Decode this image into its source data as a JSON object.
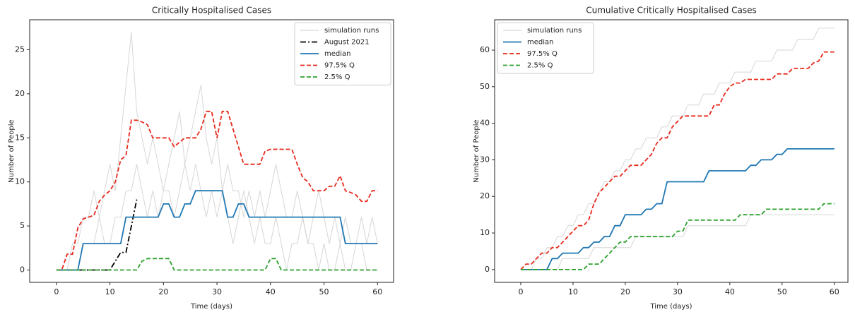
{
  "chart_data": [
    {
      "type": "line",
      "title": "Critically Hospitalised Cases",
      "xlabel": "Time (days)",
      "ylabel": "Number of People",
      "legend": "upper right",
      "x": [
        0,
        1,
        2,
        3,
        4,
        5,
        6,
        7,
        8,
        9,
        10,
        11,
        12,
        13,
        14,
        15,
        16,
        17,
        18,
        19,
        20,
        21,
        22,
        23,
        24,
        25,
        26,
        27,
        28,
        29,
        30,
        31,
        32,
        33,
        34,
        35,
        36,
        37,
        38,
        39,
        40,
        41,
        42,
        43,
        44,
        45,
        46,
        47,
        48,
        49,
        50,
        51,
        52,
        53,
        54,
        55,
        56,
        57,
        58,
        59,
        60
      ],
      "xlim": [
        -5,
        63
      ],
      "xticks": [
        0,
        10,
        20,
        30,
        40,
        50,
        60
      ],
      "ylim": [
        -1.4,
        28.4
      ],
      "yticks": [
        0,
        5,
        10,
        15,
        20,
        25
      ],
      "series": [
        {
          "name": "simulation runs",
          "color": "#cccccc",
          "linestyle": "solid",
          "values": [
            0,
            0,
            0,
            3,
            3,
            6,
            6,
            9,
            6,
            9,
            12,
            9,
            15,
            21,
            27,
            18,
            15,
            12,
            15,
            12,
            9,
            12,
            15,
            18,
            12,
            15,
            18,
            21,
            15,
            12,
            15,
            9,
            12,
            9,
            9,
            6,
            9,
            6,
            9,
            6,
            9,
            12,
            9,
            6,
            6,
            9,
            6,
            3,
            6,
            9,
            6,
            3,
            6,
            3,
            6,
            3,
            3,
            6,
            3,
            6,
            3
          ]
        },
        {
          "name": "simulation runs",
          "color": "#cccccc",
          "linestyle": "solid",
          "values": [
            0,
            0,
            0,
            0,
            0,
            3,
            3,
            3,
            6,
            3,
            3,
            6,
            6,
            9,
            9,
            12,
            9,
            6,
            9,
            6,
            9,
            9,
            6,
            9,
            12,
            9,
            12,
            9,
            6,
            9,
            6,
            9,
            6,
            3,
            6,
            9,
            6,
            3,
            6,
            3,
            3,
            6,
            3,
            0,
            3,
            3,
            6,
            3,
            3,
            0,
            3,
            0,
            0,
            3,
            0,
            0,
            3,
            3,
            0,
            0,
            0
          ]
        },
        {
          "name": "August 2021",
          "color": "#000000",
          "linestyle": "dashdot",
          "values": [
            0,
            0,
            0,
            0,
            0,
            0,
            0,
            0,
            0,
            0,
            0,
            1,
            2,
            2,
            5,
            8,
            null,
            null,
            null,
            null,
            null,
            null,
            null,
            null,
            null,
            null,
            null,
            null,
            null,
            null,
            null,
            null,
            null,
            null,
            null,
            null,
            null,
            null,
            null,
            null,
            null,
            null,
            null,
            null,
            null,
            null,
            null,
            null,
            null,
            null,
            null,
            null,
            null,
            null,
            null,
            null,
            null,
            null,
            null,
            null,
            null
          ]
        },
        {
          "name": "median",
          "color": "#1f77b4",
          "linestyle": "solid",
          "values": [
            0,
            0,
            0,
            0,
            0,
            3,
            3,
            3,
            3,
            3,
            3,
            3,
            3,
            6,
            6,
            6,
            6,
            6,
            6,
            6,
            7.5,
            7.5,
            6,
            6,
            7.5,
            7.5,
            9,
            9,
            9,
            9,
            9,
            9,
            6,
            6,
            7.5,
            7.5,
            6,
            6,
            6,
            6,
            6,
            6,
            6,
            6,
            6,
            6,
            6,
            6,
            6,
            6,
            6,
            6,
            6,
            6,
            3,
            3,
            3,
            3,
            3,
            3,
            3
          ]
        },
        {
          "name": "97.5% Q",
          "color": "#e8291c",
          "linestyle": "dashed",
          "values": [
            0,
            0,
            1.8,
            1.8,
            4.8,
            5.8,
            6,
            6.2,
            7.8,
            8.5,
            9,
            10,
            12.5,
            13,
            17,
            17,
            16.8,
            16.5,
            15,
            15,
            15,
            15,
            14,
            14.5,
            15,
            15,
            15,
            16,
            18,
            18,
            15,
            18,
            18,
            16,
            14,
            12,
            12,
            12,
            12,
            13.5,
            13.7,
            13.7,
            13.7,
            13.7,
            13.7,
            12,
            10.5,
            10,
            9,
            9,
            9,
            9.5,
            9.5,
            10.7,
            9,
            8.8,
            8.5,
            7.8,
            7.8,
            9,
            9
          ]
        },
        {
          "name": "2.5% Q",
          "color": "#2ca02c",
          "linestyle": "dashed",
          "values": [
            0,
            0,
            0,
            0,
            0,
            0,
            0,
            0,
            0,
            0,
            0,
            0,
            0,
            0,
            0,
            0,
            1,
            1.3,
            1.3,
            1.3,
            1.3,
            1.3,
            0,
            0,
            0,
            0,
            0,
            0,
            0,
            0,
            0,
            0,
            0,
            0,
            0,
            0,
            0,
            0,
            0,
            0,
            1.3,
            1.3,
            0,
            0,
            0,
            0,
            0,
            0,
            0,
            0,
            0,
            0,
            0,
            0,
            0,
            0,
            0,
            0,
            0,
            0,
            0
          ]
        }
      ]
    },
    {
      "type": "line",
      "title": "Cumulative Critically Hospitalised Cases",
      "xlabel": "Time (days)",
      "ylabel": "Number of People",
      "legend": "upper left",
      "x": [
        0,
        1,
        2,
        3,
        4,
        5,
        6,
        7,
        8,
        9,
        10,
        11,
        12,
        13,
        14,
        15,
        16,
        17,
        18,
        19,
        20,
        21,
        22,
        23,
        24,
        25,
        26,
        27,
        28,
        29,
        30,
        31,
        32,
        33,
        34,
        35,
        36,
        37,
        38,
        39,
        40,
        41,
        42,
        43,
        44,
        45,
        46,
        47,
        48,
        49,
        50,
        51,
        52,
        53,
        54,
        55,
        56,
        57,
        58,
        59,
        60
      ],
      "xlim": [
        -5,
        62.6
      ],
      "xticks": [
        0,
        10,
        20,
        30,
        40,
        50,
        60
      ],
      "ylim": [
        -3.5,
        68.3
      ],
      "yticks": [
        0,
        10,
        20,
        30,
        40,
        50,
        60
      ],
      "series": [
        {
          "name": "simulation runs",
          "color": "#cccccc",
          "linestyle": "solid",
          "values": [
            0,
            0,
            0,
            3,
            3,
            6,
            6,
            9,
            9,
            12,
            12,
            15,
            15,
            18,
            18,
            21,
            24,
            24,
            27,
            27,
            30,
            30,
            33,
            33,
            36,
            36,
            36,
            39,
            39,
            42,
            42,
            42,
            45,
            45,
            45,
            48,
            48,
            48,
            51,
            51,
            51,
            54,
            54,
            54,
            54,
            57,
            57,
            57,
            57,
            60,
            60,
            60,
            60,
            63,
            63,
            63,
            63,
            66,
            66,
            66,
            66
          ]
        },
        {
          "name": "simulation runs",
          "color": "#cccccc",
          "linestyle": "solid",
          "values": [
            0,
            0,
            0,
            0,
            0,
            0,
            0,
            0,
            3,
            3,
            3,
            3,
            3,
            3,
            6,
            6,
            6,
            6,
            6,
            6,
            6,
            6,
            9,
            9,
            9,
            9,
            9,
            9,
            9,
            9,
            9,
            9,
            12,
            12,
            12,
            12,
            12,
            12,
            12,
            12,
            12,
            12,
            12,
            12,
            15,
            15,
            15,
            15,
            15,
            15,
            15,
            15,
            15,
            15,
            15,
            15,
            15,
            15,
            15,
            15,
            15
          ]
        },
        {
          "name": "median",
          "color": "#1f77b4",
          "linestyle": "solid",
          "values": [
            0,
            0,
            0,
            0,
            0,
            0,
            3,
            3,
            4.5,
            4.5,
            4.5,
            4.5,
            6,
            6,
            7.5,
            7.5,
            9,
            9,
            12,
            12,
            15,
            15,
            15,
            15,
            16.5,
            16.5,
            18,
            18,
            24,
            24,
            24,
            24,
            24,
            24,
            24,
            24,
            27,
            27,
            27,
            27,
            27,
            27,
            27,
            27,
            28.5,
            28.5,
            30,
            30,
            30,
            31.5,
            31.5,
            33,
            33,
            33,
            33,
            33,
            33,
            33,
            33,
            33,
            33
          ]
        },
        {
          "name": "97.5% Q",
          "color": "#e8291c",
          "linestyle": "dashed",
          "values": [
            0,
            1.5,
            1.5,
            3,
            4.5,
            4.5,
            6,
            6,
            7.5,
            9,
            10.5,
            12,
            12,
            13.5,
            18,
            21,
            22.5,
            24,
            25.5,
            25.5,
            27,
            28.5,
            28.5,
            28.5,
            30,
            31.5,
            34.5,
            36,
            36,
            39,
            40.5,
            42,
            42,
            42,
            42,
            42,
            42,
            45,
            45,
            48,
            50,
            51,
            51,
            52,
            52,
            52,
            52,
            52,
            52,
            53.5,
            53.5,
            53.5,
            55,
            55,
            55,
            55,
            56.5,
            57,
            59.5,
            59.5,
            59.5
          ]
        },
        {
          "name": "2.5% Q",
          "color": "#2ca02c",
          "linestyle": "dashed",
          "values": [
            0,
            0,
            0,
            0,
            0,
            0,
            0,
            0,
            0,
            0,
            0,
            0,
            0,
            1.5,
            1.5,
            1.5,
            3,
            4.5,
            6,
            7.5,
            7.5,
            9,
            9,
            9,
            9,
            9,
            9,
            9,
            9,
            9,
            10.5,
            10.5,
            13.5,
            13.5,
            13.5,
            13.5,
            13.5,
            13.5,
            13.5,
            13.5,
            13.5,
            13.5,
            15,
            15,
            15,
            15,
            15,
            16.5,
            16.5,
            16.5,
            16.5,
            16.5,
            16.5,
            16.5,
            16.5,
            16.5,
            16.5,
            16.5,
            18,
            18,
            18
          ]
        }
      ]
    }
  ]
}
